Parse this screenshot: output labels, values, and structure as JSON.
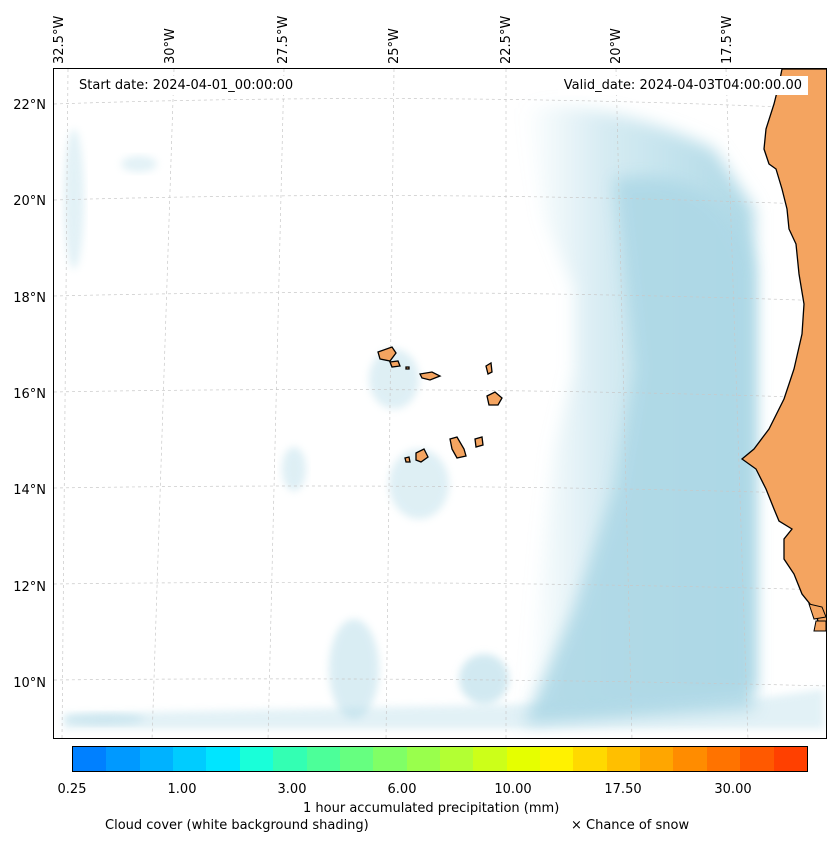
{
  "map": {
    "start_date": "Start date: 2024-04-01_00:00:00",
    "valid_date": "Valid_date: 2024-04-03T04:00:00.00",
    "lon_labels": [
      "32.5°W",
      "30°W",
      "27.5°W",
      "25°W",
      "22.5°W",
      "20°W",
      "17.5°W"
    ],
    "lat_labels": [
      "22°N",
      "20°N",
      "18°N",
      "16°N",
      "14°N",
      "12°N",
      "10°N"
    ],
    "colors": {
      "land": "#f4a460",
      "cloud": "#add8e6",
      "coastline": "#000000",
      "gridline": "#c8c8c8"
    }
  },
  "colorbar": {
    "title": "1 hour accumulated precipitation (mm)",
    "tick_labels": [
      "0.25",
      "1.00",
      "3.00",
      "6.00",
      "10.00",
      "17.50",
      "30.00"
    ],
    "colors": [
      "#0080ff",
      "#0099ff",
      "#00b2ff",
      "#00ccff",
      "#00e5ff",
      "#19ffd9",
      "#33ffb3",
      "#4cff99",
      "#66ff80",
      "#80ff66",
      "#99ff4c",
      "#b3ff33",
      "#ccff19",
      "#e5ff00",
      "#fff200",
      "#ffd900",
      "#ffbf00",
      "#ffa600",
      "#ff8c00",
      "#ff7300",
      "#ff5900",
      "#ff4000"
    ]
  },
  "legend": {
    "cloud_cover": "Cloud cover (white background shading)",
    "snow": "× Chance of snow"
  }
}
